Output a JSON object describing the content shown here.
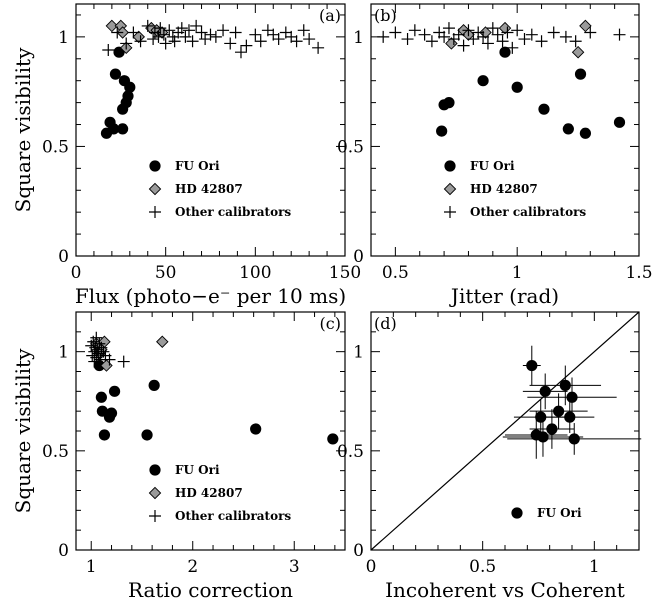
{
  "chart_data": [
    {
      "panel": "(a)",
      "type": "scatter",
      "xlabel": "Flux (photo−e⁻ per 10 ms)",
      "ylabel": "Square visibility",
      "xlim": [
        0,
        150
      ],
      "ylim": [
        0,
        1.15
      ],
      "xticks": [
        {
          "value": 0,
          "label": "0"
        },
        {
          "value": 50,
          "label": "50"
        },
        {
          "value": 100,
          "label": "100"
        },
        {
          "value": 150,
          "label": "150"
        }
      ],
      "yticks": [
        {
          "value": 0,
          "label": "0"
        },
        {
          "value": 0.5,
          "label": "0.5"
        },
        {
          "value": 1,
          "label": "1"
        }
      ],
      "legend": {
        "position": "bottom-center",
        "entries": [
          "FU Ori",
          "HD 42807",
          "Other calibrators"
        ]
      },
      "series": [
        {
          "name": "FU Ori",
          "marker": "circle",
          "color": "#000000",
          "points": [
            [
              17,
              0.56
            ],
            [
              19,
              0.61
            ],
            [
              21,
              0.58
            ],
            [
              22,
              0.83
            ],
            [
              24,
              0.93
            ],
            [
              26,
              0.58
            ],
            [
              26,
              0.67
            ],
            [
              27,
              0.8
            ],
            [
              28,
              0.7
            ],
            [
              29,
              0.73
            ],
            [
              30,
              0.77
            ]
          ]
        },
        {
          "name": "HD 42807",
          "marker": "diamond",
          "color": "#9a9a9a",
          "points": [
            [
              20,
              1.05
            ],
            [
              25,
              1.05
            ],
            [
              26,
              1.02
            ],
            [
              28,
              0.95
            ],
            [
              35,
              1.0
            ],
            [
              42,
              1.04
            ],
            [
              45,
              1.03
            ],
            [
              48,
              1.02
            ]
          ]
        },
        {
          "name": "Other calibrators",
          "marker": "plus",
          "color": "#000000",
          "points": [
            [
              18,
              0.94
            ],
            [
              23,
              1.02
            ],
            [
              28,
              0.97
            ],
            [
              32,
              1.02
            ],
            [
              36,
              0.98
            ],
            [
              40,
              1.05
            ],
            [
              43,
              0.99
            ],
            [
              44,
              1.02
            ],
            [
              46,
              1.0
            ],
            [
              47,
              1.04
            ],
            [
              49,
              1.01
            ],
            [
              50,
              0.97
            ],
            [
              52,
              1.03
            ],
            [
              54,
              1.0
            ],
            [
              55,
              0.98
            ],
            [
              57,
              1.02
            ],
            [
              59,
              1.04
            ],
            [
              61,
              1.0
            ],
            [
              63,
              1.03
            ],
            [
              65,
              0.98
            ],
            [
              67,
              1.05
            ],
            [
              70,
              1.02
            ],
            [
              72,
              0.99
            ],
            [
              75,
              1.01
            ],
            [
              78,
              1.0
            ],
            [
              82,
              1.03
            ],
            [
              86,
              0.97
            ],
            [
              89,
              1.02
            ],
            [
              92,
              0.93
            ],
            [
              95,
              0.96
            ],
            [
              100,
              1.01
            ],
            [
              103,
              0.98
            ],
            [
              107,
              1.03
            ],
            [
              110,
              1.01
            ],
            [
              113,
              0.99
            ],
            [
              117,
              1.02
            ],
            [
              120,
              1.0
            ],
            [
              123,
              0.98
            ],
            [
              127,
              1.03
            ],
            [
              130,
              0.99
            ],
            [
              135,
              0.95
            ]
          ]
        }
      ]
    },
    {
      "panel": "(b)",
      "type": "scatter",
      "xlabel": "Jitter (rad)",
      "ylabel": "",
      "xlim": [
        0.4,
        1.5
      ],
      "ylim": [
        0,
        1.15
      ],
      "xticks": [
        {
          "value": 0.5,
          "label": "0.5"
        },
        {
          "value": 1,
          "label": "1"
        },
        {
          "value": 1.5,
          "label": "1.5"
        }
      ],
      "yticks": [
        {
          "value": 0,
          "label": "0"
        },
        {
          "value": 0.5,
          "label": "0.5"
        },
        {
          "value": 1,
          "label": "1"
        }
      ],
      "legend": {
        "position": "bottom-center",
        "entries": [
          "FU Ori",
          "HD 42807",
          "Other calibrators"
        ]
      },
      "series": [
        {
          "name": "FU Ori",
          "marker": "circle",
          "color": "#000000",
          "points": [
            [
              0.69,
              0.57
            ],
            [
              0.7,
              0.69
            ],
            [
              0.72,
              0.7
            ],
            [
              0.86,
              0.8
            ],
            [
              0.95,
              0.93
            ],
            [
              1.0,
              0.77
            ],
            [
              1.11,
              0.67
            ],
            [
              1.21,
              0.58
            ],
            [
              1.26,
              0.83
            ],
            [
              1.28,
              0.56
            ],
            [
              1.42,
              0.61
            ]
          ]
        },
        {
          "name": "HD 42807",
          "marker": "diamond",
          "color": "#9a9a9a",
          "points": [
            [
              0.73,
              0.97
            ],
            [
              0.78,
              1.03
            ],
            [
              0.8,
              1.01
            ],
            [
              0.87,
              1.02
            ],
            [
              0.95,
              1.04
            ],
            [
              1.25,
              0.93
            ],
            [
              1.28,
              1.05
            ]
          ]
        },
        {
          "name": "Other calibrators",
          "marker": "plus",
          "color": "#000000",
          "points": [
            [
              0.45,
              1.0
            ],
            [
              0.5,
              1.02
            ],
            [
              0.55,
              0.99
            ],
            [
              0.58,
              1.03
            ],
            [
              0.62,
              1.01
            ],
            [
              0.65,
              0.98
            ],
            [
              0.68,
              1.02
            ],
            [
              0.7,
              1.0
            ],
            [
              0.72,
              1.04
            ],
            [
              0.74,
              0.99
            ],
            [
              0.76,
              1.01
            ],
            [
              0.78,
              0.96
            ],
            [
              0.8,
              1.03
            ],
            [
              0.82,
              0.99
            ],
            [
              0.84,
              1.02
            ],
            [
              0.86,
              1.0
            ],
            [
              0.88,
              0.97
            ],
            [
              0.9,
              1.04
            ],
            [
              0.92,
              1.01
            ],
            [
              0.94,
              0.98
            ],
            [
              0.96,
              1.02
            ],
            [
              0.98,
              0.95
            ],
            [
              1.0,
              1.03
            ],
            [
              1.03,
              0.99
            ],
            [
              1.06,
              1.01
            ],
            [
              1.1,
              0.98
            ],
            [
              1.15,
              1.02
            ],
            [
              1.2,
              1.0
            ],
            [
              1.24,
              0.98
            ],
            [
              1.3,
              1.02
            ],
            [
              1.42,
              1.01
            ]
          ]
        }
      ]
    },
    {
      "panel": "(c)",
      "type": "scatter",
      "xlabel": "Ratio correction",
      "ylabel": "Square visibility",
      "xlim": [
        0.85,
        3.5
      ],
      "ylim": [
        0,
        1.2
      ],
      "xticks": [
        {
          "value": 1,
          "label": "1"
        },
        {
          "value": 2,
          "label": "2"
        },
        {
          "value": 3,
          "label": "3"
        }
      ],
      "yticks": [
        {
          "value": 0,
          "label": "0"
        },
        {
          "value": 0.5,
          "label": "0.5"
        },
        {
          "value": 1,
          "label": "1"
        }
      ],
      "legend": {
        "position": "bottom-center",
        "entries": [
          "FU Ori",
          "HD 42807",
          "Other calibrators"
        ]
      },
      "series": [
        {
          "name": "FU Ori",
          "marker": "circle",
          "color": "#000000",
          "points": [
            [
              1.08,
              0.93
            ],
            [
              1.1,
              0.77
            ],
            [
              1.11,
              0.7
            ],
            [
              1.13,
              0.58
            ],
            [
              1.18,
              0.67
            ],
            [
              1.2,
              0.69
            ],
            [
              1.23,
              0.8
            ],
            [
              1.55,
              0.58
            ],
            [
              1.62,
              0.83
            ],
            [
              2.62,
              0.61
            ],
            [
              3.38,
              0.56
            ]
          ]
        },
        {
          "name": "HD 42807",
          "marker": "diamond",
          "color": "#9a9a9a",
          "points": [
            [
              1.05,
              1.04
            ],
            [
              1.08,
              0.99
            ],
            [
              1.1,
              1.01
            ],
            [
              1.13,
              1.05
            ],
            [
              1.15,
              0.93
            ],
            [
              1.7,
              1.05
            ]
          ]
        },
        {
          "name": "Other calibrators",
          "marker": "plus",
          "color": "#000000",
          "points": [
            [
              1.0,
              1.03
            ],
            [
              1.01,
              0.98
            ],
            [
              1.02,
              1.05
            ],
            [
              1.03,
              1.0
            ],
            [
              1.03,
              0.95
            ],
            [
              1.04,
              1.02
            ],
            [
              1.05,
              0.97
            ],
            [
              1.05,
              1.07
            ],
            [
              1.06,
              1.01
            ],
            [
              1.07,
              0.99
            ],
            [
              1.08,
              1.04
            ],
            [
              1.09,
              0.96
            ],
            [
              1.1,
              1.02
            ],
            [
              1.12,
              1.0
            ],
            [
              1.14,
              0.98
            ],
            [
              1.18,
              0.96
            ],
            [
              1.32,
              0.95
            ]
          ]
        }
      ]
    },
    {
      "panel": "(d)",
      "type": "scatter",
      "xlabel": "Incoherent vs Coherent",
      "ylabel": "",
      "xlim": [
        0,
        1.2
      ],
      "ylim": [
        0,
        1.2
      ],
      "xticks": [
        {
          "value": 0,
          "label": "0"
        },
        {
          "value": 0.5,
          "label": "0.5"
        },
        {
          "value": 1,
          "label": "1"
        }
      ],
      "yticks": [
        {
          "value": 0,
          "label": "0"
        },
        {
          "value": 0.5,
          "label": "0.5"
        },
        {
          "value": 1,
          "label": "1"
        }
      ],
      "legend": {
        "position": "bottom-right",
        "entries": [
          "FU Ori"
        ]
      },
      "reference_line": {
        "from": [
          0,
          0
        ],
        "to": [
          1.2,
          1.2
        ]
      },
      "series": [
        {
          "name": "FU Ori",
          "marker": "circle",
          "color": "#000000",
          "points": [
            {
              "x": 0.72,
              "y": 0.93,
              "xerr": 0.04,
              "yerr": 0.1
            },
            {
              "x": 0.74,
              "y": 0.58,
              "xerr": 0.14,
              "yerr": 0.12
            },
            {
              "x": 0.76,
              "y": 0.67,
              "xerr": 0.12,
              "yerr": 0.09
            },
            {
              "x": 0.77,
              "y": 0.57,
              "xerr": 0.18,
              "yerr": 0.1
            },
            {
              "x": 0.78,
              "y": 0.8,
              "xerr": 0.1,
              "yerr": 0.09
            },
            {
              "x": 0.81,
              "y": 0.61,
              "xerr": 0.1,
              "yerr": 0.1
            },
            {
              "x": 0.84,
              "y": 0.7,
              "xerr": 0.13,
              "yerr": 0.09
            },
            {
              "x": 0.87,
              "y": 0.83,
              "xerr": 0.16,
              "yerr": 0.1
            },
            {
              "x": 0.89,
              "y": 0.67,
              "xerr": 0.11,
              "yerr": 0.08
            },
            {
              "x": 0.9,
              "y": 0.77,
              "xerr": 0.2,
              "yerr": 0.1
            },
            {
              "x": 0.91,
              "y": 0.56,
              "xerr": 0.3,
              "yerr": 0.08
            }
          ]
        }
      ]
    }
  ]
}
